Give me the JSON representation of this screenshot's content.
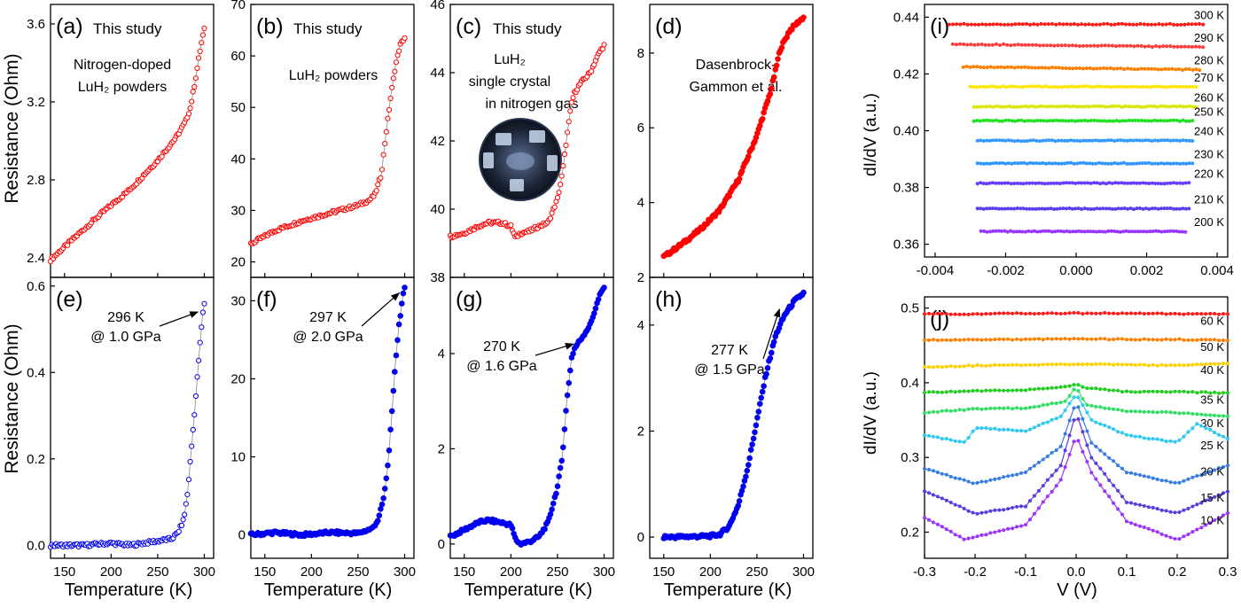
{
  "figure": {
    "ylabel_resistance": "Resistance (Ohm)",
    "xlabel_temperature": "Temperature (K)",
    "ylabel_didv": "dI/dV (a.u.)",
    "xlabel_voltage": "V (V)",
    "colors": {
      "red": "#ff0000",
      "blue": "#0000ee",
      "axis": "#000000",
      "photo_dark": "#1d2638",
      "photo_light": "#c9d8ee"
    },
    "photo_name": "crystal-photo"
  },
  "chart_data": [
    {
      "id": "a",
      "type": "scatter",
      "panel_label": "(a)",
      "header": "This study",
      "notes": [
        "Nitrogen-doped",
        "LuH₂ powders"
      ],
      "marker_color": "#ff0000",
      "marker_style": "open-circle",
      "xlim": [
        135,
        310
      ],
      "ylim": [
        2.3,
        3.7
      ],
      "xticks": [
        150,
        200,
        250,
        300
      ],
      "yticks": [
        2.4,
        2.8,
        3.2,
        3.6
      ],
      "ytick_labels": [
        "2.4",
        "2.8",
        "3.2",
        "3.6"
      ],
      "x": [
        135,
        160,
        190,
        220,
        250,
        270,
        280,
        285,
        290,
        295,
        298,
        300
      ],
      "y": [
        2.39,
        2.5,
        2.63,
        2.75,
        2.9,
        3.02,
        3.1,
        3.17,
        3.3,
        3.45,
        3.53,
        3.57
      ]
    },
    {
      "id": "b",
      "type": "scatter",
      "panel_label": "(b)",
      "header": "This study",
      "notes": [
        "LuH₂ powders"
      ],
      "marker_color": "#ff0000",
      "marker_style": "open-circle",
      "xlim": [
        135,
        310
      ],
      "ylim": [
        17,
        70
      ],
      "xticks": [
        150,
        200,
        250,
        300
      ],
      "yticks": [
        20,
        30,
        40,
        50,
        60,
        70
      ],
      "ytick_labels": [
        "20",
        "30",
        "40",
        "50",
        "60",
        "70"
      ],
      "x": [
        135,
        160,
        190,
        220,
        250,
        262,
        268,
        275,
        280,
        285,
        290,
        295,
        298,
        300
      ],
      "y": [
        23.5,
        26,
        28,
        29.5,
        31,
        32,
        33,
        37,
        45,
        52,
        58,
        62,
        63,
        63.5
      ]
    },
    {
      "id": "c",
      "type": "scatter",
      "panel_label": "(c)",
      "header": "This study",
      "notes": [
        "LuH₂",
        "single crystal",
        "in nitrogen gas"
      ],
      "marker_color": "#ff0000",
      "marker_style": "open-circle",
      "xlim": [
        135,
        310
      ],
      "ylim": [
        38,
        46
      ],
      "xticks": [
        150,
        200,
        250,
        300
      ],
      "yticks": [
        38,
        40,
        42,
        44,
        46
      ],
      "ytick_labels": [
        "38",
        "40",
        "42",
        "44",
        "46"
      ],
      "x": [
        135,
        150,
        165,
        175,
        190,
        200,
        205,
        210,
        220,
        230,
        240,
        250,
        255,
        260,
        265,
        268,
        275,
        285,
        295,
        300
      ],
      "y": [
        39.2,
        39.3,
        39.5,
        39.6,
        39.6,
        39.5,
        39.15,
        39.3,
        39.35,
        39.5,
        39.6,
        40.3,
        41,
        42.1,
        43.1,
        43.4,
        43.7,
        44,
        44.6,
        44.8
      ]
    },
    {
      "id": "d",
      "type": "scatter",
      "panel_label": "(d)",
      "notes": [
        "Dasenbrock-",
        "Gammon et al."
      ],
      "marker_color": "#ff0000",
      "marker_style": "filled-circle",
      "xlim": [
        135,
        310
      ],
      "ylim": [
        2,
        9.3
      ],
      "xticks": [
        150,
        200,
        250,
        300
      ],
      "yticks": [
        2,
        4,
        6,
        8
      ],
      "ytick_labels": [
        "2",
        "4",
        "6",
        "8"
      ],
      "x": [
        150,
        170,
        190,
        210,
        230,
        250,
        265,
        275,
        285,
        295,
        300
      ],
      "y": [
        2.55,
        2.9,
        3.3,
        3.8,
        4.6,
        5.8,
        7.0,
        8.1,
        8.6,
        8.85,
        8.95
      ]
    },
    {
      "id": "e",
      "type": "scatter",
      "panel_label": "(e)",
      "annotation_lines": [
        "296 K",
        "@ 1.0 GPa"
      ],
      "arrow_to": [
        296,
        0.54
      ],
      "marker_color": "#0000ee",
      "marker_style": "open-circle",
      "xlim": [
        135,
        310
      ],
      "ylim": [
        -0.03,
        0.62
      ],
      "xticks": [
        150,
        200,
        250,
        300
      ],
      "yticks": [
        0.0,
        0.2,
        0.4,
        0.6
      ],
      "ytick_labels": [
        "0.0",
        "0.2",
        "0.4",
        "0.6"
      ],
      "x": [
        135,
        170,
        200,
        220,
        250,
        265,
        272,
        278,
        282,
        286,
        290,
        294,
        298,
        300
      ],
      "y": [
        0.0,
        0.0,
        0.005,
        0.0,
        0.01,
        0.015,
        0.03,
        0.06,
        0.12,
        0.22,
        0.32,
        0.43,
        0.53,
        0.56
      ]
    },
    {
      "id": "f",
      "type": "scatter",
      "panel_label": "(f)",
      "annotation_lines": [
        "297 K",
        "@ 2.0 GPa"
      ],
      "arrow_to": [
        297,
        31
      ],
      "marker_color": "#0000ee",
      "marker_style": "filled-circle",
      "xlim": [
        135,
        310
      ],
      "ylim": [
        -3,
        33
      ],
      "xticks": [
        150,
        200,
        250,
        300
      ],
      "yticks": [
        0,
        10,
        20,
        30
      ],
      "ytick_labels": [
        "0",
        "10",
        "20",
        "30"
      ],
      "x": [
        135,
        160,
        190,
        220,
        250,
        265,
        272,
        278,
        282,
        286,
        290,
        294,
        298,
        300
      ],
      "y": [
        0,
        0.3,
        0,
        0.3,
        0.2,
        0.8,
        2,
        5,
        9,
        15,
        22,
        27,
        30.5,
        31.5
      ]
    },
    {
      "id": "g",
      "type": "scatter",
      "panel_label": "(g)",
      "annotation_lines": [
        "270 K",
        "@ 1.6 GPa"
      ],
      "arrow_to": [
        270,
        4.2
      ],
      "marker_color": "#0000ee",
      "marker_style": "filled-circle",
      "xlim": [
        135,
        310
      ],
      "ylim": [
        -0.3,
        5.6
      ],
      "xticks": [
        150,
        200,
        250,
        300
      ],
      "yticks": [
        0,
        2,
        4
      ],
      "ytick_labels": [
        "0",
        "2",
        "4"
      ],
      "x": [
        135,
        150,
        165,
        175,
        190,
        200,
        205,
        210,
        220,
        230,
        240,
        250,
        255,
        260,
        265,
        268,
        275,
        285,
        295,
        300
      ],
      "y": [
        0.15,
        0.3,
        0.45,
        0.5,
        0.45,
        0.4,
        0.1,
        0.0,
        0.05,
        0.15,
        0.45,
        1.2,
        1.8,
        3.0,
        3.9,
        4.1,
        4.3,
        4.6,
        5.2,
        5.4
      ]
    },
    {
      "id": "h",
      "type": "scatter",
      "panel_label": "(h)",
      "annotation_lines": [
        "277 K",
        "@ 1.5 GPa"
      ],
      "arrow_to": [
        277,
        4.3
      ],
      "marker_color": "#0000ee",
      "marker_style": "filled-circle",
      "xlim": [
        135,
        310
      ],
      "ylim": [
        -0.4,
        4.9
      ],
      "xticks": [
        150,
        200,
        250,
        300
      ],
      "yticks": [
        0,
        2,
        4
      ],
      "ytick_labels": [
        "0",
        "2",
        "4"
      ],
      "x": [
        150,
        180,
        200,
        210,
        220,
        230,
        240,
        250,
        260,
        270,
        280,
        290,
        300
      ],
      "y": [
        0,
        0.01,
        0.02,
        0.05,
        0.2,
        0.6,
        1.3,
        2.2,
        3.1,
        3.8,
        4.2,
        4.45,
        4.6
      ]
    },
    {
      "id": "i",
      "type": "line",
      "panel_label": "(i)",
      "xlim": [
        -0.0043,
        0.0043
      ],
      "ylim": [
        0.3555,
        0.4445
      ],
      "xticks": [
        -0.004,
        -0.002,
        0.0,
        0.002,
        0.004
      ],
      "xtick_labels": [
        "-0.004",
        "-0.002",
        "0.000",
        "0.002",
        "0.004"
      ],
      "yticks": [
        0.36,
        0.38,
        0.4,
        0.42,
        0.44
      ],
      "ytick_labels": [
        "0.36",
        "0.38",
        "0.40",
        "0.42",
        "0.44"
      ],
      "series": [
        {
          "name": "300 K",
          "color": "#ff1a1a",
          "x": [
            -0.0036,
            0.0036
          ],
          "y": [
            0.4375,
            0.4375
          ]
        },
        {
          "name": "290 K",
          "color": "#ff3c3c",
          "x": [
            -0.0035,
            0.0036
          ],
          "y": [
            0.4305,
            0.4295
          ]
        },
        {
          "name": "280 K",
          "color": "#ff7f00",
          "x": [
            -0.0032,
            0.0035
          ],
          "y": [
            0.4225,
            0.4215
          ]
        },
        {
          "name": "270 K",
          "color": "#ffe600",
          "x": [
            -0.003,
            0.0034
          ],
          "y": [
            0.4155,
            0.4155
          ]
        },
        {
          "name": "260 K",
          "color": "#d8e600",
          "x": [
            -0.0029,
            0.0034
          ],
          "y": [
            0.4085,
            0.4085
          ]
        },
        {
          "name": "250 K",
          "color": "#22e022",
          "x": [
            -0.0029,
            0.0033
          ],
          "y": [
            0.4035,
            0.4035
          ]
        },
        {
          "name": "240 K",
          "color": "#3399ff",
          "x": [
            -0.0028,
            0.0033
          ],
          "y": [
            0.3965,
            0.3965
          ]
        },
        {
          "name": "230 K",
          "color": "#2f95ff",
          "x": [
            -0.0028,
            0.0033
          ],
          "y": [
            0.3885,
            0.3885
          ]
        },
        {
          "name": "220 K",
          "color": "#6a3bff",
          "x": [
            -0.0028,
            0.0032
          ],
          "y": [
            0.3815,
            0.3815
          ]
        },
        {
          "name": "210 K",
          "color": "#5b3cf0",
          "x": [
            -0.0028,
            0.0032
          ],
          "y": [
            0.3725,
            0.3725
          ]
        },
        {
          "name": "200 K",
          "color": "#9a35ff",
          "x": [
            -0.0027,
            0.0031
          ],
          "y": [
            0.3645,
            0.3645
          ]
        }
      ]
    },
    {
      "id": "j",
      "type": "line",
      "panel_label": "(j)",
      "xlim": [
        -0.3,
        0.3
      ],
      "ylim": [
        0.165,
        0.515
      ],
      "xticks": [
        -0.3,
        -0.2,
        -0.1,
        0.0,
        0.1,
        0.2,
        0.3
      ],
      "xtick_labels": [
        "-0.3",
        "-0.2",
        "-0.1",
        "0.0",
        "0.1",
        "0.2",
        "0.3"
      ],
      "yticks": [
        0.2,
        0.3,
        0.4,
        0.5
      ],
      "ytick_labels": [
        "0.2",
        "0.3",
        "0.4",
        "0.5"
      ],
      "series": [
        {
          "name": "60 K",
          "color": "#ff1a1a",
          "x": [
            -0.3,
            -0.2,
            -0.1,
            0.0,
            0.1,
            0.2,
            0.3
          ],
          "y": [
            0.492,
            0.492,
            0.493,
            0.493,
            0.493,
            0.492,
            0.492
          ]
        },
        {
          "name": "50 K",
          "color": "#ff7f00",
          "x": [
            -0.3,
            -0.2,
            -0.1,
            0.0,
            0.1,
            0.2,
            0.3
          ],
          "y": [
            0.457,
            0.458,
            0.458,
            0.459,
            0.458,
            0.458,
            0.457
          ]
        },
        {
          "name": "40 K",
          "color": "#ffd000",
          "x": [
            -0.3,
            -0.2,
            -0.1,
            0.0,
            0.1,
            0.2,
            0.3
          ],
          "y": [
            0.421,
            0.423,
            0.424,
            0.425,
            0.424,
            0.423,
            0.426
          ]
        },
        {
          "name": "35 K",
          "color": "#22cc22",
          "x": [
            -0.3,
            -0.2,
            -0.1,
            -0.02,
            0.0,
            0.02,
            0.1,
            0.2,
            0.3
          ],
          "y": [
            0.387,
            0.389,
            0.39,
            0.395,
            0.398,
            0.393,
            0.388,
            0.388,
            0.386
          ]
        },
        {
          "name": "30 K",
          "color": "#33dd66",
          "x": [
            -0.3,
            -0.2,
            -0.1,
            -0.02,
            0.0,
            0.02,
            0.1,
            0.2,
            0.3
          ],
          "y": [
            0.36,
            0.365,
            0.366,
            0.375,
            0.395,
            0.37,
            0.362,
            0.36,
            0.355
          ]
        },
        {
          "name": "25 K",
          "color": "#2ec9ef",
          "x": [
            -0.3,
            -0.22,
            -0.2,
            -0.1,
            -0.03,
            0.0,
            0.03,
            0.1,
            0.2,
            0.24,
            0.3
          ],
          "y": [
            0.33,
            0.32,
            0.34,
            0.335,
            0.355,
            0.385,
            0.35,
            0.33,
            0.32,
            0.345,
            0.325
          ]
        },
        {
          "name": "20 K",
          "color": "#3a7de0",
          "x": [
            -0.3,
            -0.2,
            -0.1,
            -0.03,
            0.0,
            0.03,
            0.1,
            0.2,
            0.3
          ],
          "y": [
            0.285,
            0.265,
            0.28,
            0.315,
            0.375,
            0.32,
            0.28,
            0.265,
            0.29
          ]
        },
        {
          "name": "15 K",
          "color": "#5a3ce0",
          "x": [
            -0.3,
            -0.2,
            -0.1,
            -0.03,
            0.0,
            0.03,
            0.1,
            0.2,
            0.3
          ],
          "y": [
            0.255,
            0.225,
            0.235,
            0.29,
            0.36,
            0.3,
            0.24,
            0.225,
            0.255
          ]
        },
        {
          "name": "10 K",
          "color": "#9a35ff",
          "x": [
            -0.3,
            -0.22,
            -0.1,
            -0.03,
            0.0,
            0.03,
            0.1,
            0.2,
            0.3
          ],
          "y": [
            0.22,
            0.19,
            0.21,
            0.27,
            0.33,
            0.28,
            0.215,
            0.19,
            0.225
          ]
        }
      ]
    }
  ]
}
